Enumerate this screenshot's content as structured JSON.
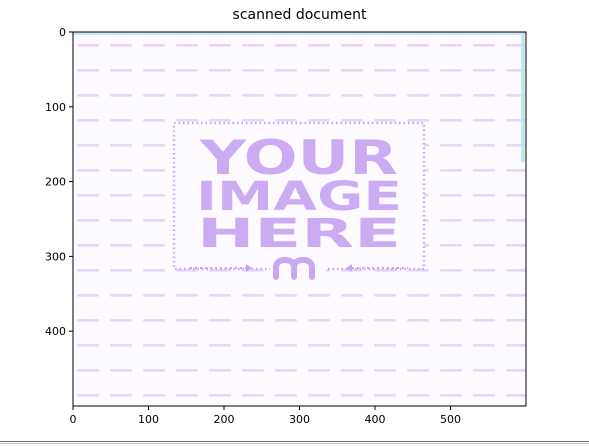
{
  "chart_data": {
    "type": "image",
    "title": "scanned document",
    "xlim": [
      0,
      600
    ],
    "ylim": [
      0,
      500
    ],
    "y_inverted": true,
    "xticks": [
      0,
      100,
      200,
      300,
      400,
      500
    ],
    "yticks": [
      0,
      100,
      200,
      300,
      400
    ],
    "image_content": {
      "lines": [
        "YOUR",
        "IMAGE",
        "HERE"
      ],
      "icon": "logo-icon",
      "background_pattern": "dashed-horizontal-lines",
      "colors": {
        "pattern": "#e7d7fb",
        "frame": "#c7a5f2",
        "text": "#c9a8f2",
        "edge_accent": "#bfe3f0"
      }
    }
  }
}
